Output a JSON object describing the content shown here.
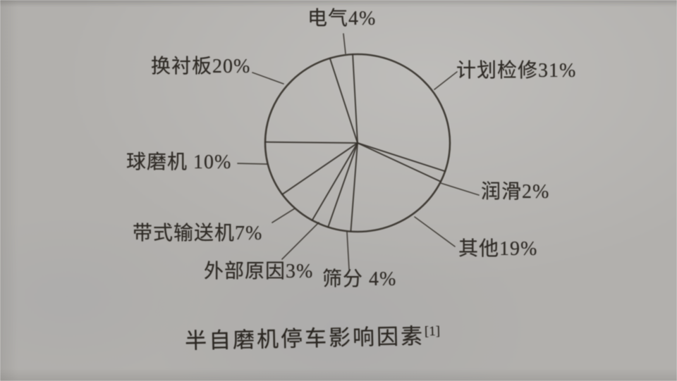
{
  "page": {
    "paper_color": "#b2b0ad",
    "ink_color": "#37332d",
    "caption": "半自磨机停车影响因素",
    "caption_ref": "[1]"
  },
  "chart_data": {
    "type": "pie",
    "title": "半自磨机停车影响因素",
    "title_ref": "[1]",
    "style": "outline-only pie (unfilled, black stroke) on photographed gray paper",
    "direction": "clockwise",
    "start_angle_deg": -3,
    "legend_position": "none (labels with leader lines around pie)",
    "slices": [
      {
        "name": "计划检修",
        "value": 31,
        "label": "计划检修31%"
      },
      {
        "name": "润滑",
        "value": 2,
        "label": "润滑2%"
      },
      {
        "name": "其他",
        "value": 19,
        "label": "其他19%"
      },
      {
        "name": "筛分",
        "value": 4,
        "label": "筛分 4%"
      },
      {
        "name": "外部原因",
        "value": 3,
        "label": "外部原因3%"
      },
      {
        "name": "带式输送机",
        "value": 7,
        "label": "带式输送机7%"
      },
      {
        "name": "球磨机",
        "value": 10,
        "label": "球磨机 10%"
      },
      {
        "name": "换衬板",
        "value": 20,
        "label": "换衬板20%"
      },
      {
        "name": "电气",
        "value": 4,
        "label": "电气4%"
      }
    ]
  }
}
